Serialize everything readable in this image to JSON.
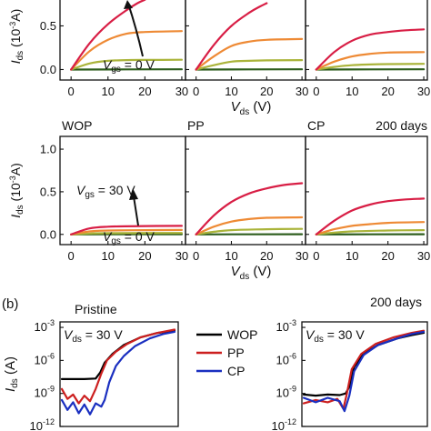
{
  "figure": {
    "panel_b_label": "(b)",
    "colors": {
      "vgs_0": "#2e5e1e",
      "vgs_10": "#aab43a",
      "vgs_20": "#ee8a35",
      "vgs_30": "#d81e45",
      "wop": "#000000",
      "pp": "#cc1f1f",
      "cp": "#1a2fc0"
    }
  },
  "chart_data": [
    {
      "id": "pristine-output",
      "type": "line",
      "xlabel": "V",
      "xlabel_sub": "ds",
      "xlabel_unit": "(V)",
      "ylabel_main": "I",
      "ylabel_sub": "ds",
      "ylabel_unit_left": "(10",
      "ylabel_unit_exp": "-3",
      "ylabel_unit_right": "A)",
      "xlim": [
        -3,
        31
      ],
      "ylim": [
        -0.12,
        0.88
      ],
      "xticks": [
        "0",
        "10",
        "20",
        "30"
      ],
      "yticks": [
        "0.0",
        "0.5"
      ],
      "annotation_vgs_low": "= 0 V",
      "subplots": [
        {
          "label": "",
          "series": [
            {
              "vgs": 0,
              "values": [
                [
                  0,
                  0
                ],
                [
                  30,
                  0.003
                ]
              ]
            },
            {
              "vgs": 10,
              "values": [
                [
                  0,
                  0
                ],
                [
                  5,
                  0.07
                ],
                [
                  10,
                  0.1
                ],
                [
                  15,
                  0.108
                ],
                [
                  20,
                  0.11
                ],
                [
                  30,
                  0.112
                ]
              ]
            },
            {
              "vgs": 20,
              "values": [
                [
                  0,
                  0
                ],
                [
                  5,
                  0.21
                ],
                [
                  10,
                  0.34
                ],
                [
                  15,
                  0.41
                ],
                [
                  20,
                  0.43
                ],
                [
                  30,
                  0.44
                ]
              ]
            },
            {
              "vgs": 30,
              "values": [
                [
                  0,
                  0
                ],
                [
                  5,
                  0.3
                ],
                [
                  10,
                  0.52
                ],
                [
                  15,
                  0.68
                ],
                [
                  18,
                  0.76
                ],
                [
                  20,
                  0.8
                ]
              ]
            }
          ]
        },
        {
          "label": "",
          "series": [
            {
              "vgs": 0,
              "values": [
                [
                  0,
                  0
                ],
                [
                  30,
                  0.003
                ]
              ]
            },
            {
              "vgs": 10,
              "values": [
                [
                  0,
                  0
                ],
                [
                  5,
                  0.05
                ],
                [
                  10,
                  0.09
                ],
                [
                  15,
                  0.1
                ],
                [
                  20,
                  0.105
                ],
                [
                  30,
                  0.108
                ]
              ]
            },
            {
              "vgs": 20,
              "values": [
                [
                  0,
                  0
                ],
                [
                  5,
                  0.15
                ],
                [
                  10,
                  0.27
                ],
                [
                  15,
                  0.32
                ],
                [
                  20,
                  0.34
                ],
                [
                  30,
                  0.35
                ]
              ]
            },
            {
              "vgs": 30,
              "values": [
                [
                  0,
                  0
                ],
                [
                  5,
                  0.28
                ],
                [
                  10,
                  0.5
                ],
                [
                  15,
                  0.65
                ],
                [
                  18,
                  0.72
                ],
                [
                  20,
                  0.76
                ]
              ]
            }
          ]
        },
        {
          "label": "",
          "series": [
            {
              "vgs": 0,
              "values": [
                [
                  0,
                  0
                ],
                [
                  30,
                  0.003
                ]
              ]
            },
            {
              "vgs": 10,
              "values": [
                [
                  0,
                  0
                ],
                [
                  5,
                  0.03
                ],
                [
                  10,
                  0.05
                ],
                [
                  15,
                  0.058
                ],
                [
                  20,
                  0.062
                ],
                [
                  30,
                  0.065
                ]
              ]
            },
            {
              "vgs": 20,
              "values": [
                [
                  0,
                  0
                ],
                [
                  5,
                  0.09
                ],
                [
                  10,
                  0.15
                ],
                [
                  15,
                  0.18
                ],
                [
                  20,
                  0.195
                ],
                [
                  30,
                  0.2
                ]
              ]
            },
            {
              "vgs": 30,
              "values": [
                [
                  0,
                  0
                ],
                [
                  5,
                  0.2
                ],
                [
                  10,
                  0.33
                ],
                [
                  15,
                  0.4
                ],
                [
                  20,
                  0.43
                ],
                [
                  25,
                  0.45
                ],
                [
                  30,
                  0.46
                ]
              ]
            }
          ]
        }
      ]
    },
    {
      "id": "aged-output",
      "type": "line",
      "title_right": "200 days",
      "xlabel": "V",
      "xlabel_sub": "ds",
      "xlabel_unit": "(V)",
      "ylabel_main": "I",
      "ylabel_sub": "ds",
      "ylabel_unit_left": "(10",
      "ylabel_unit_exp": "-3",
      "ylabel_unit_right": "A)",
      "xlim": [
        -3,
        31
      ],
      "ylim": [
        -0.12,
        1.15
      ],
      "xticks": [
        "0",
        "10",
        "20",
        "30"
      ],
      "yticks": [
        "0.0",
        "0.5",
        "1.0"
      ],
      "annotation_vgs_high": "= 30 V",
      "annotation_vgs_low": "= 0 V",
      "subplots": [
        {
          "label": "WOP",
          "series": [
            {
              "vgs": 0,
              "values": [
                [
                  0,
                  0
                ],
                [
                  30,
                  0.002
                ]
              ]
            },
            {
              "vgs": 10,
              "values": [
                [
                  0,
                  0
                ],
                [
                  5,
                  0.01
                ],
                [
                  10,
                  0.015
                ],
                [
                  30,
                  0.017
                ]
              ]
            },
            {
              "vgs": 20,
              "values": [
                [
                  0,
                  0
                ],
                [
                  5,
                  0.035
                ],
                [
                  10,
                  0.045
                ],
                [
                  20,
                  0.05
                ],
                [
                  30,
                  0.052
                ]
              ]
            },
            {
              "vgs": 30,
              "values": [
                [
                  0,
                  0
                ],
                [
                  5,
                  0.07
                ],
                [
                  10,
                  0.09
                ],
                [
                  20,
                  0.098
                ],
                [
                  30,
                  0.1
                ]
              ]
            }
          ]
        },
        {
          "label": "PP",
          "series": [
            {
              "vgs": 0,
              "values": [
                [
                  0,
                  0
                ],
                [
                  30,
                  0.002
                ]
              ]
            },
            {
              "vgs": 10,
              "values": [
                [
                  0,
                  0
                ],
                [
                  5,
                  0.03
                ],
                [
                  10,
                  0.05
                ],
                [
                  20,
                  0.06
                ],
                [
                  30,
                  0.065
                ]
              ]
            },
            {
              "vgs": 20,
              "values": [
                [
                  0,
                  0
                ],
                [
                  5,
                  0.09
                ],
                [
                  10,
                  0.15
                ],
                [
                  15,
                  0.18
                ],
                [
                  20,
                  0.195
                ],
                [
                  30,
                  0.2
                ]
              ]
            },
            {
              "vgs": 30,
              "values": [
                [
                  0,
                  0
                ],
                [
                  5,
                  0.22
                ],
                [
                  10,
                  0.38
                ],
                [
                  15,
                  0.48
                ],
                [
                  20,
                  0.54
                ],
                [
                  25,
                  0.58
                ],
                [
                  30,
                  0.6
                ]
              ]
            }
          ]
        },
        {
          "label": "CP",
          "series": [
            {
              "vgs": 0,
              "values": [
                [
                  0,
                  0
                ],
                [
                  30,
                  0.002
                ]
              ]
            },
            {
              "vgs": 10,
              "values": [
                [
                  0,
                  0
                ],
                [
                  5,
                  0.02
                ],
                [
                  10,
                  0.035
                ],
                [
                  20,
                  0.045
                ],
                [
                  30,
                  0.05
                ]
              ]
            },
            {
              "vgs": 20,
              "values": [
                [
                  0,
                  0
                ],
                [
                  5,
                  0.06
                ],
                [
                  10,
                  0.1
                ],
                [
                  15,
                  0.12
                ],
                [
                  20,
                  0.135
                ],
                [
                  30,
                  0.145
                ]
              ]
            },
            {
              "vgs": 30,
              "values": [
                [
                  0,
                  0
                ],
                [
                  5,
                  0.16
                ],
                [
                  10,
                  0.28
                ],
                [
                  15,
                  0.35
                ],
                [
                  20,
                  0.39
                ],
                [
                  25,
                  0.41
                ],
                [
                  30,
                  0.42
                ]
              ]
            }
          ]
        }
      ]
    },
    {
      "id": "transfer",
      "type": "line",
      "yscale": "log",
      "ylabel_main": "I",
      "ylabel_sub": "ds",
      "ylabel_unit": "(A)",
      "ylim_exp": [
        -12,
        -2.5
      ],
      "yticks_exp": [
        "-3",
        "-6",
        "-9",
        "-12"
      ],
      "ytick_base": "10",
      "annotation_vds": "= 30 V",
      "legend": [
        "WOP",
        "PP",
        "CP"
      ],
      "legend_position": "center",
      "subplots": [
        {
          "label": "Pristine",
          "series": [
            {
              "name": "WOP",
              "x": [
                0,
                0.2,
                0.3,
                0.34,
                0.38,
                0.45,
                0.55,
                0.7,
                0.85,
                1.0
              ],
              "log_y": [
                -7.7,
                -7.7,
                -7.65,
                -7.1,
                -6.2,
                -5.4,
                -4.6,
                -3.9,
                -3.5,
                -3.3
              ]
            },
            {
              "name": "PP",
              "x": [
                0,
                0.05,
                0.1,
                0.15,
                0.2,
                0.25,
                0.3,
                0.35,
                0.4,
                0.48,
                0.58,
                0.7,
                0.85,
                1.0
              ],
              "log_y": [
                -8.6,
                -9.5,
                -9.1,
                -9.9,
                -9.2,
                -9.7,
                -8.6,
                -7.2,
                -6.0,
                -5.2,
                -4.5,
                -3.9,
                -3.5,
                -3.2
              ]
            },
            {
              "name": "CP",
              "x": [
                0,
                0.05,
                0.1,
                0.15,
                0.2,
                0.25,
                0.3,
                0.35,
                0.38,
                0.42,
                0.48,
                0.55,
                0.65,
                0.78,
                0.9,
                1.0
              ],
              "log_y": [
                -9.6,
                -10.5,
                -9.8,
                -10.8,
                -10.0,
                -10.9,
                -9.9,
                -10.2,
                -9.6,
                -8.0,
                -6.5,
                -5.6,
                -4.7,
                -4.0,
                -3.6,
                -3.4
              ]
            }
          ]
        },
        {
          "label": "200 days",
          "series": [
            {
              "name": "WOP",
              "x": [
                0,
                0.1,
                0.2,
                0.3,
                0.35,
                0.38,
                0.42,
                0.5,
                0.62,
                0.78,
                0.9,
                1.0
              ],
              "log_y": [
                -9.1,
                -9.2,
                -9.1,
                -9.15,
                -9.0,
                -8.4,
                -6.6,
                -5.4,
                -4.6,
                -4.0,
                -3.7,
                -3.5
              ]
            },
            {
              "name": "PP",
              "x": [
                0,
                0.1,
                0.2,
                0.28,
                0.33,
                0.36,
                0.4,
                0.48,
                0.6,
                0.75,
                0.9,
                1.0
              ],
              "log_y": [
                -9.9,
                -9.6,
                -9.8,
                -9.5,
                -10.4,
                -9.0,
                -6.8,
                -5.4,
                -4.5,
                -3.9,
                -3.5,
                -3.3
              ]
            },
            {
              "name": "CP",
              "x": [
                0,
                0.1,
                0.2,
                0.3,
                0.34,
                0.38,
                0.42,
                0.5,
                0.62,
                0.78,
                0.9,
                1.0
              ],
              "log_y": [
                -9.4,
                -9.8,
                -9.4,
                -9.7,
                -10.6,
                -9.2,
                -7.0,
                -5.5,
                -4.6,
                -4.0,
                -3.6,
                -3.4
              ]
            }
          ]
        }
      ]
    }
  ]
}
